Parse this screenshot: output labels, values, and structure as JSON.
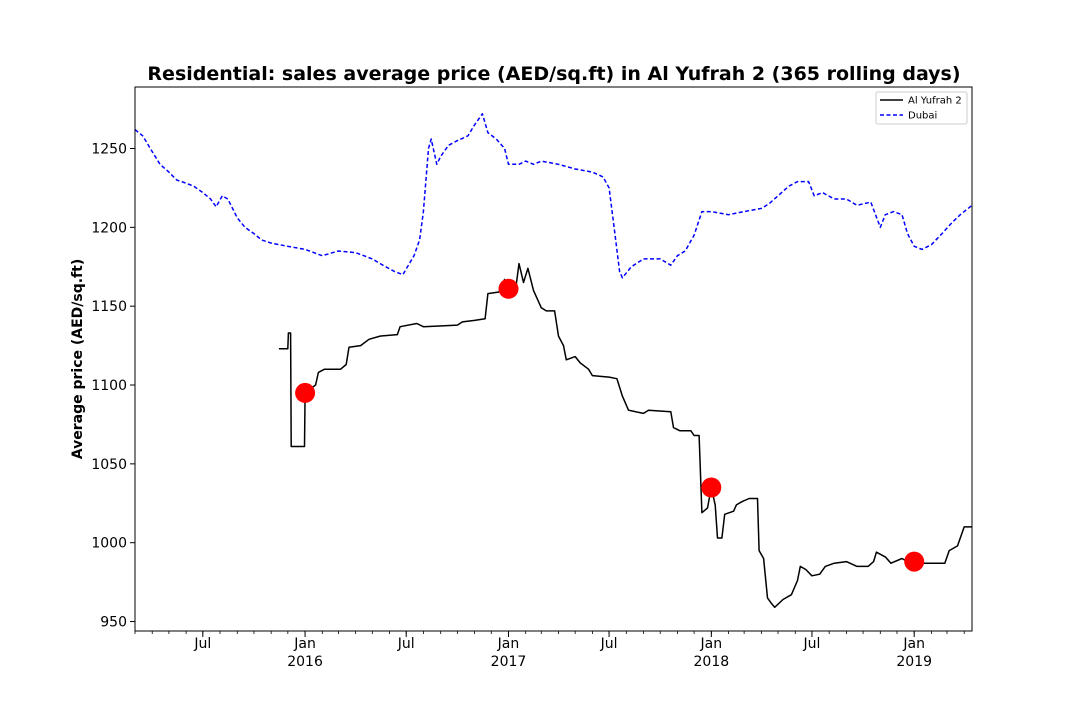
{
  "chart_data": {
    "type": "line",
    "title": "Residential: sales average price (AED/sq.ft) in Al Yufrah 2 (365 rolling days)",
    "xlabel": "",
    "ylabel": "Average price (AED/sq.ft)",
    "xlim": [
      "2015-03-01",
      "2019-04-15"
    ],
    "ylim": [
      944,
      1289
    ],
    "y_ticks": [
      950,
      1000,
      1050,
      1100,
      1150,
      1200,
      1250
    ],
    "x_ticks": [
      {
        "date": "2015-07-01",
        "label": "Jul",
        "year": ""
      },
      {
        "date": "2016-01-01",
        "label": "Jan",
        "year": "2016"
      },
      {
        "date": "2016-07-01",
        "label": "Jul",
        "year": ""
      },
      {
        "date": "2017-01-01",
        "label": "Jan",
        "year": "2017"
      },
      {
        "date": "2017-07-01",
        "label": "Jul",
        "year": ""
      },
      {
        "date": "2018-01-01",
        "label": "Jan",
        "year": "2018"
      },
      {
        "date": "2018-07-01",
        "label": "Jul",
        "year": ""
      },
      {
        "date": "2019-01-01",
        "label": "Jan",
        "year": "2019"
      }
    ],
    "legend_position": "top-right",
    "grid": false,
    "series": [
      {
        "name": "Al Yufrah 2",
        "color": "#000000",
        "style": "solid",
        "points": [
          [
            "2015-11-15",
            1123
          ],
          [
            "2015-12-01",
            1123
          ],
          [
            "2015-12-02",
            1133
          ],
          [
            "2015-12-06",
            1133
          ],
          [
            "2015-12-07",
            1061
          ],
          [
            "2015-12-31",
            1061
          ],
          [
            "2016-01-01",
            1095
          ],
          [
            "2016-01-20",
            1100
          ],
          [
            "2016-01-25",
            1108
          ],
          [
            "2016-02-05",
            1110
          ],
          [
            "2016-03-05",
            1110
          ],
          [
            "2016-03-15",
            1113
          ],
          [
            "2016-03-20",
            1124
          ],
          [
            "2016-04-10",
            1125
          ],
          [
            "2016-04-25",
            1129
          ],
          [
            "2016-05-15",
            1131
          ],
          [
            "2016-06-15",
            1132
          ],
          [
            "2016-06-20",
            1137
          ],
          [
            "2016-07-20",
            1139
          ],
          [
            "2016-08-01",
            1137
          ],
          [
            "2016-10-01",
            1138
          ],
          [
            "2016-10-10",
            1140
          ],
          [
            "2016-11-01",
            1141
          ],
          [
            "2016-11-20",
            1142
          ],
          [
            "2016-11-25",
            1158
          ],
          [
            "2016-12-15",
            1159
          ],
          [
            "2016-12-20",
            1163
          ],
          [
            "2016-12-25",
            1167
          ],
          [
            "2017-01-01",
            1161
          ],
          [
            "2017-01-15",
            1164
          ],
          [
            "2017-01-20",
            1177
          ],
          [
            "2017-01-28",
            1165
          ],
          [
            "2017-02-05",
            1174
          ],
          [
            "2017-02-15",
            1160
          ],
          [
            "2017-03-01",
            1149
          ],
          [
            "2017-03-10",
            1147
          ],
          [
            "2017-03-25",
            1147
          ],
          [
            "2017-04-01",
            1131
          ],
          [
            "2017-04-10",
            1125
          ],
          [
            "2017-04-15",
            1116
          ],
          [
            "2017-05-01",
            1118
          ],
          [
            "2017-05-10",
            1114
          ],
          [
            "2017-05-25",
            1110
          ],
          [
            "2017-06-01",
            1106
          ],
          [
            "2017-07-01",
            1105
          ],
          [
            "2017-07-15",
            1104
          ],
          [
            "2017-07-25",
            1093
          ],
          [
            "2017-08-05",
            1084
          ],
          [
            "2017-09-01",
            1082
          ],
          [
            "2017-09-10",
            1084
          ],
          [
            "2017-10-20",
            1083
          ],
          [
            "2017-10-25",
            1073
          ],
          [
            "2017-11-05",
            1071
          ],
          [
            "2017-11-25",
            1071
          ],
          [
            "2017-12-01",
            1068
          ],
          [
            "2017-12-10",
            1068
          ],
          [
            "2017-12-15",
            1019
          ],
          [
            "2017-12-25",
            1022
          ],
          [
            "2018-01-01",
            1035
          ],
          [
            "2018-01-08",
            1024
          ],
          [
            "2018-01-12",
            1003
          ],
          [
            "2018-01-20",
            1003
          ],
          [
            "2018-01-25",
            1018
          ],
          [
            "2018-02-10",
            1020
          ],
          [
            "2018-02-15",
            1024
          ],
          [
            "2018-02-25",
            1026
          ],
          [
            "2018-03-10",
            1028
          ],
          [
            "2018-03-25",
            1028
          ],
          [
            "2018-03-28",
            995
          ],
          [
            "2018-04-05",
            990
          ],
          [
            "2018-04-12",
            965
          ],
          [
            "2018-04-18",
            962
          ],
          [
            "2018-04-25",
            959
          ],
          [
            "2018-05-10",
            964
          ],
          [
            "2018-05-25",
            967
          ],
          [
            "2018-06-05",
            976
          ],
          [
            "2018-06-10",
            985
          ],
          [
            "2018-06-20",
            983
          ],
          [
            "2018-07-01",
            979
          ],
          [
            "2018-07-15",
            980
          ],
          [
            "2018-07-25",
            985
          ],
          [
            "2018-08-10",
            987
          ],
          [
            "2018-09-01",
            988
          ],
          [
            "2018-09-20",
            985
          ],
          [
            "2018-10-10",
            985
          ],
          [
            "2018-10-20",
            988
          ],
          [
            "2018-10-25",
            994
          ],
          [
            "2018-11-10",
            991
          ],
          [
            "2018-11-20",
            987
          ],
          [
            "2018-12-10",
            990
          ],
          [
            "2018-12-20",
            988
          ],
          [
            "2019-01-01",
            988
          ],
          [
            "2019-01-10",
            987
          ],
          [
            "2019-02-25",
            987
          ],
          [
            "2019-03-05",
            995
          ],
          [
            "2019-03-20",
            998
          ],
          [
            "2019-04-01",
            1010
          ],
          [
            "2019-04-15",
            1010
          ]
        ]
      },
      {
        "name": "Dubai",
        "color": "#0000ff",
        "style": "dashed",
        "points": [
          [
            "2015-03-01",
            1262
          ],
          [
            "2015-03-15",
            1258
          ],
          [
            "2015-04-01",
            1248
          ],
          [
            "2015-04-15",
            1240
          ],
          [
            "2015-05-01",
            1235
          ],
          [
            "2015-05-15",
            1230
          ],
          [
            "2015-06-01",
            1228
          ],
          [
            "2015-06-15",
            1226
          ],
          [
            "2015-07-01",
            1222
          ],
          [
            "2015-07-15",
            1218
          ],
          [
            "2015-07-25",
            1213
          ],
          [
            "2015-08-05",
            1220
          ],
          [
            "2015-08-15",
            1218
          ],
          [
            "2015-09-01",
            1206
          ],
          [
            "2015-09-15",
            1200
          ],
          [
            "2015-10-01",
            1196
          ],
          [
            "2015-10-15",
            1192
          ],
          [
            "2015-11-01",
            1190
          ],
          [
            "2015-12-01",
            1188
          ],
          [
            "2016-01-01",
            1186
          ],
          [
            "2016-02-01",
            1182
          ],
          [
            "2016-03-01",
            1185
          ],
          [
            "2016-04-01",
            1184
          ],
          [
            "2016-05-01",
            1180
          ],
          [
            "2016-05-20",
            1176
          ],
          [
            "2016-06-10",
            1172
          ],
          [
            "2016-06-25",
            1170
          ],
          [
            "2016-07-05",
            1176
          ],
          [
            "2016-07-15",
            1182
          ],
          [
            "2016-07-25",
            1192
          ],
          [
            "2016-08-01",
            1210
          ],
          [
            "2016-08-10",
            1250
          ],
          [
            "2016-08-15",
            1256
          ],
          [
            "2016-08-25",
            1240
          ],
          [
            "2016-09-01",
            1245
          ],
          [
            "2016-09-15",
            1252
          ],
          [
            "2016-10-01",
            1255
          ],
          [
            "2016-10-20",
            1258
          ],
          [
            "2016-11-01",
            1265
          ],
          [
            "2016-11-15",
            1272
          ],
          [
            "2016-11-25",
            1260
          ],
          [
            "2016-12-10",
            1256
          ],
          [
            "2016-12-25",
            1250
          ],
          [
            "2017-01-01",
            1240
          ],
          [
            "2017-01-20",
            1240
          ],
          [
            "2017-02-01",
            1242
          ],
          [
            "2017-02-15",
            1240
          ],
          [
            "2017-03-01",
            1242
          ],
          [
            "2017-04-01",
            1240
          ],
          [
            "2017-05-01",
            1237
          ],
          [
            "2017-06-01",
            1235
          ],
          [
            "2017-06-20",
            1232
          ],
          [
            "2017-07-01",
            1225
          ],
          [
            "2017-07-10",
            1200
          ],
          [
            "2017-07-20",
            1172
          ],
          [
            "2017-07-25",
            1168
          ],
          [
            "2017-08-10",
            1175
          ],
          [
            "2017-09-01",
            1180
          ],
          [
            "2017-10-01",
            1180
          ],
          [
            "2017-10-20",
            1176
          ],
          [
            "2017-11-01",
            1182
          ],
          [
            "2017-11-15",
            1185
          ],
          [
            "2017-12-01",
            1195
          ],
          [
            "2017-12-15",
            1210
          ],
          [
            "2018-01-01",
            1210
          ],
          [
            "2018-02-01",
            1208
          ],
          [
            "2018-03-01",
            1210
          ],
          [
            "2018-04-01",
            1212
          ],
          [
            "2018-04-15",
            1215
          ],
          [
            "2018-05-01",
            1220
          ],
          [
            "2018-05-20",
            1226
          ],
          [
            "2018-06-05",
            1229
          ],
          [
            "2018-06-25",
            1229
          ],
          [
            "2018-07-05",
            1220
          ],
          [
            "2018-07-20",
            1222
          ],
          [
            "2018-08-10",
            1218
          ],
          [
            "2018-09-01",
            1218
          ],
          [
            "2018-09-20",
            1214
          ],
          [
            "2018-10-15",
            1216
          ],
          [
            "2018-11-01",
            1200
          ],
          [
            "2018-11-10",
            1208
          ],
          [
            "2018-11-25",
            1210
          ],
          [
            "2018-12-10",
            1208
          ],
          [
            "2018-12-20",
            1196
          ],
          [
            "2019-01-01",
            1188
          ],
          [
            "2019-01-15",
            1186
          ],
          [
            "2019-02-01",
            1189
          ],
          [
            "2019-02-20",
            1196
          ],
          [
            "2019-03-10",
            1203
          ],
          [
            "2019-03-25",
            1208
          ],
          [
            "2019-04-15",
            1214
          ]
        ]
      }
    ],
    "markers": [
      {
        "date": "2016-01-01",
        "value": 1095,
        "color": "#ff0000"
      },
      {
        "date": "2017-01-01",
        "value": 1161,
        "color": "#ff0000"
      },
      {
        "date": "2018-01-01",
        "value": 1035,
        "color": "#ff0000"
      },
      {
        "date": "2019-01-01",
        "value": 988,
        "color": "#ff0000"
      }
    ]
  }
}
